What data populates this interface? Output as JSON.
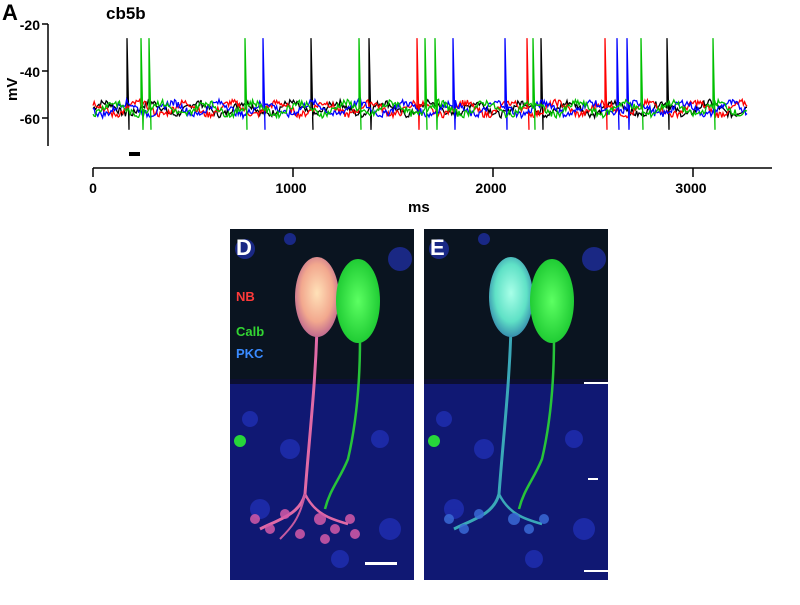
{
  "figure": {
    "panel_a_letter": "A",
    "panel_d_letter": "D",
    "panel_e_letter": "E",
    "trace_label": "cb5b",
    "legend": [
      {
        "label": "NB",
        "color": "#ff3a3a"
      },
      {
        "label": "Calb",
        "color": "#33d633"
      },
      {
        "label": "PKC",
        "color": "#3a8bff"
      }
    ],
    "colors": {
      "background_micro": "#0e0e3a",
      "calb_green": "#27e83a",
      "nb_cell": "#f2a88e",
      "e_cell": "#5fe1c6",
      "pkc_blue": "#1e33d6"
    }
  },
  "chart_data": {
    "type": "line",
    "title": "cb5b",
    "xlabel": "ms",
    "ylabel": "mV",
    "x_ticks": [
      "0",
      "1000",
      "2000",
      "3000"
    ],
    "y_ticks": [
      "-20",
      "-40",
      "-60"
    ],
    "xlim": [
      0,
      3400
    ],
    "ylim": [
      -72,
      -18
    ],
    "resting_potential": -56,
    "series": [
      {
        "color": "#000000",
        "spike_times": [
          170,
          1090,
          1380,
          2240,
          2870
        ]
      },
      {
        "color": "#ff0000",
        "spike_times": [
          1620,
          2170,
          2560
        ]
      },
      {
        "color": "#0000ff",
        "spike_times": [
          850,
          1800,
          2060,
          2620,
          2670
        ]
      },
      {
        "color": "#00c000",
        "spike_times": [
          240,
          280,
          760,
          1330,
          1660,
          1710,
          2200,
          2740,
          3100
        ]
      }
    ]
  }
}
